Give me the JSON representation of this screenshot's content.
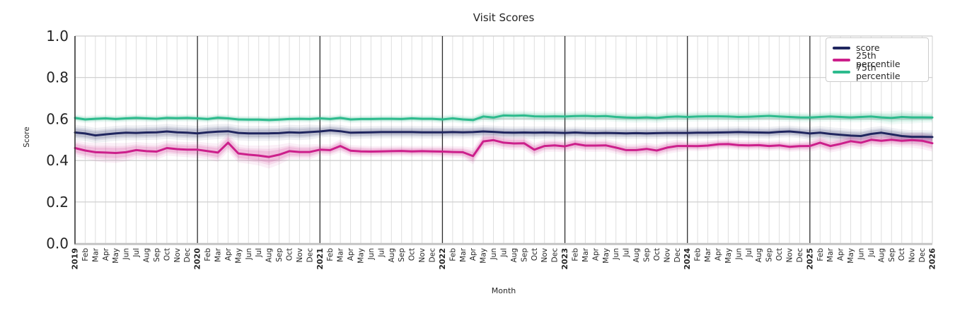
{
  "title": "Visit Scores",
  "axis": {
    "x_label": "Month",
    "y_label": "Score"
  },
  "legend": {
    "position": "upper right",
    "entries": [
      {
        "label": "score",
        "color": "#20265f"
      },
      {
        "label": "25th percentile",
        "color": "#cc1f8b"
      },
      {
        "label": "75th percentile",
        "color": "#2dbb8d"
      }
    ]
  },
  "chart_data": {
    "type": "line",
    "title": "Visit Scores",
    "xlabel": "Month",
    "ylabel": "Score",
    "ylim": [
      0.0,
      1.0
    ],
    "ytick_labels": [
      "0.0",
      "0.2",
      "0.4",
      "0.6",
      "0.8",
      "1.0"
    ],
    "yticks": [
      0.0,
      0.2,
      0.4,
      0.6,
      0.8,
      1.0
    ],
    "grid": true,
    "x_range": "Jan 2019 - Jan 2026, monthly",
    "year_boundary_indices": [
      0,
      12,
      24,
      36,
      48,
      60,
      72
    ],
    "x_tick_labels": [
      "2019",
      "Feb",
      "Mar",
      "Apr",
      "May",
      "Jun",
      "Jul",
      "Aug",
      "Sep",
      "Oct",
      "Nov",
      "Dec",
      "2020",
      "Feb",
      "Mar",
      "Apr",
      "May",
      "Jun",
      "Jul",
      "Aug",
      "Sep",
      "Oct",
      "Nov",
      "Dec",
      "2021",
      "Feb",
      "Mar",
      "Apr",
      "May",
      "Jun",
      "Jul",
      "Aug",
      "Sep",
      "Oct",
      "Nov",
      "Dec",
      "2022",
      "Feb",
      "Mar",
      "Apr",
      "May",
      "Jun",
      "Jul",
      "Aug",
      "Sep",
      "Oct",
      "Nov",
      "Dec",
      "2023",
      "Feb",
      "Mar",
      "Apr",
      "May",
      "Jun",
      "Jul",
      "Aug",
      "Sep",
      "Oct",
      "Nov",
      "Dec",
      "2024",
      "Feb",
      "Mar",
      "Apr",
      "May",
      "Jun",
      "Jul",
      "Aug",
      "Sep",
      "Oct",
      "Nov",
      "Dec",
      "2025",
      "Feb",
      "Mar",
      "Apr",
      "May",
      "Jun",
      "Jul",
      "Aug",
      "Sep",
      "Oct",
      "Nov",
      "Dec",
      "2026"
    ],
    "series": [
      {
        "name": "score",
        "color": "#20265f",
        "values": [
          0.535,
          0.53,
          0.521,
          0.526,
          0.531,
          0.534,
          0.533,
          0.535,
          0.536,
          0.54,
          0.536,
          0.534,
          0.531,
          0.536,
          0.539,
          0.541,
          0.533,
          0.531,
          0.531,
          0.531,
          0.532,
          0.536,
          0.534,
          0.537,
          0.54,
          0.545,
          0.541,
          0.534,
          0.535,
          0.536,
          0.537,
          0.537,
          0.537,
          0.537,
          0.536,
          0.536,
          0.536,
          0.537,
          0.536,
          0.537,
          0.54,
          0.538,
          0.535,
          0.534,
          0.535,
          0.534,
          0.535,
          0.534,
          0.533,
          0.535,
          0.533,
          0.532,
          0.533,
          0.532,
          0.531,
          0.532,
          0.531,
          0.532,
          0.533,
          0.533,
          0.533,
          0.534,
          0.534,
          0.535,
          0.536,
          0.537,
          0.536,
          0.535,
          0.534,
          0.538,
          0.54,
          0.536,
          0.53,
          0.534,
          0.528,
          0.524,
          0.52,
          0.518,
          0.528,
          0.534,
          0.526,
          0.518,
          0.514,
          0.514,
          0.513
        ],
        "ci": [
          0.018,
          0.018,
          0.018,
          0.018,
          0.018,
          0.018,
          0.018,
          0.018,
          0.018,
          0.018,
          0.018,
          0.018,
          0.018,
          0.018,
          0.018,
          0.018,
          0.018,
          0.018,
          0.018,
          0.018,
          0.018,
          0.018,
          0.018,
          0.018,
          0.015,
          0.015,
          0.015,
          0.015,
          0.015,
          0.015,
          0.015,
          0.015,
          0.015,
          0.015,
          0.015,
          0.015,
          0.015,
          0.015,
          0.015,
          0.015,
          0.015,
          0.015,
          0.015,
          0.015,
          0.015,
          0.015,
          0.015,
          0.015,
          0.014,
          0.014,
          0.014,
          0.014,
          0.014,
          0.014,
          0.014,
          0.014,
          0.014,
          0.014,
          0.014,
          0.014,
          0.014,
          0.014,
          0.014,
          0.014,
          0.014,
          0.014,
          0.014,
          0.014,
          0.014,
          0.014,
          0.014,
          0.014,
          0.016,
          0.016,
          0.016,
          0.016,
          0.016,
          0.016,
          0.016,
          0.016,
          0.016,
          0.016,
          0.016,
          0.016,
          0.016
        ]
      },
      {
        "name": "25th percentile",
        "color": "#cc1f8b",
        "values": [
          0.46,
          0.448,
          0.44,
          0.438,
          0.436,
          0.44,
          0.45,
          0.445,
          0.443,
          0.46,
          0.455,
          0.452,
          0.452,
          0.445,
          0.438,
          0.486,
          0.434,
          0.428,
          0.424,
          0.417,
          0.428,
          0.445,
          0.441,
          0.441,
          0.452,
          0.45,
          0.47,
          0.447,
          0.444,
          0.443,
          0.444,
          0.445,
          0.446,
          0.444,
          0.445,
          0.444,
          0.443,
          0.441,
          0.44,
          0.421,
          0.492,
          0.498,
          0.486,
          0.482,
          0.483,
          0.452,
          0.47,
          0.473,
          0.468,
          0.48,
          0.472,
          0.472,
          0.473,
          0.462,
          0.45,
          0.45,
          0.456,
          0.448,
          0.462,
          0.47,
          0.47,
          0.469,
          0.472,
          0.478,
          0.479,
          0.474,
          0.473,
          0.474,
          0.47,
          0.473,
          0.466,
          0.469,
          0.47,
          0.486,
          0.47,
          0.48,
          0.493,
          0.486,
          0.5,
          0.495,
          0.5,
          0.495,
          0.498,
          0.495,
          0.483
        ],
        "ci": [
          0.02,
          0.02,
          0.022,
          0.024,
          0.024,
          0.022,
          0.02,
          0.02,
          0.02,
          0.018,
          0.018,
          0.018,
          0.02,
          0.02,
          0.022,
          0.022,
          0.022,
          0.022,
          0.024,
          0.028,
          0.024,
          0.02,
          0.018,
          0.018,
          0.014,
          0.014,
          0.016,
          0.014,
          0.014,
          0.013,
          0.013,
          0.013,
          0.013,
          0.013,
          0.013,
          0.013,
          0.014,
          0.014,
          0.014,
          0.02,
          0.018,
          0.016,
          0.016,
          0.016,
          0.016,
          0.016,
          0.015,
          0.015,
          0.015,
          0.015,
          0.015,
          0.015,
          0.015,
          0.015,
          0.015,
          0.015,
          0.015,
          0.015,
          0.015,
          0.015,
          0.012,
          0.012,
          0.012,
          0.012,
          0.012,
          0.012,
          0.012,
          0.012,
          0.012,
          0.012,
          0.012,
          0.012,
          0.014,
          0.016,
          0.016,
          0.016,
          0.016,
          0.016,
          0.016,
          0.016,
          0.016,
          0.016,
          0.018,
          0.02,
          0.02
        ]
      },
      {
        "name": "75th percentile",
        "color": "#2dbb8d",
        "values": [
          0.605,
          0.598,
          0.601,
          0.603,
          0.6,
          0.603,
          0.605,
          0.603,
          0.601,
          0.605,
          0.604,
          0.605,
          0.603,
          0.6,
          0.606,
          0.603,
          0.598,
          0.597,
          0.597,
          0.595,
          0.597,
          0.6,
          0.601,
          0.6,
          0.603,
          0.6,
          0.605,
          0.598,
          0.6,
          0.6,
          0.601,
          0.601,
          0.6,
          0.603,
          0.601,
          0.601,
          0.598,
          0.603,
          0.598,
          0.595,
          0.612,
          0.607,
          0.617,
          0.616,
          0.617,
          0.613,
          0.612,
          0.613,
          0.612,
          0.614,
          0.615,
          0.613,
          0.614,
          0.61,
          0.607,
          0.606,
          0.608,
          0.605,
          0.61,
          0.612,
          0.61,
          0.612,
          0.613,
          0.613,
          0.612,
          0.61,
          0.611,
          0.613,
          0.615,
          0.612,
          0.61,
          0.608,
          0.607,
          0.61,
          0.612,
          0.61,
          0.608,
          0.61,
          0.612,
          0.608,
          0.605,
          0.61,
          0.608,
          0.608,
          0.607
        ],
        "ci": [
          0.009,
          0.009,
          0.009,
          0.009,
          0.009,
          0.009,
          0.009,
          0.009,
          0.009,
          0.009,
          0.009,
          0.009,
          0.009,
          0.009,
          0.009,
          0.009,
          0.009,
          0.009,
          0.009,
          0.009,
          0.009,
          0.009,
          0.009,
          0.009,
          0.009,
          0.009,
          0.009,
          0.009,
          0.009,
          0.009,
          0.009,
          0.009,
          0.009,
          0.009,
          0.009,
          0.009,
          0.01,
          0.01,
          0.01,
          0.01,
          0.012,
          0.012,
          0.012,
          0.012,
          0.012,
          0.012,
          0.012,
          0.012,
          0.012,
          0.012,
          0.012,
          0.012,
          0.012,
          0.012,
          0.012,
          0.012,
          0.012,
          0.012,
          0.012,
          0.012,
          0.012,
          0.012,
          0.012,
          0.012,
          0.012,
          0.012,
          0.012,
          0.012,
          0.012,
          0.012,
          0.012,
          0.012,
          0.012,
          0.012,
          0.012,
          0.012,
          0.012,
          0.013,
          0.013,
          0.014,
          0.016,
          0.016,
          0.015,
          0.013,
          0.012
        ]
      }
    ]
  }
}
